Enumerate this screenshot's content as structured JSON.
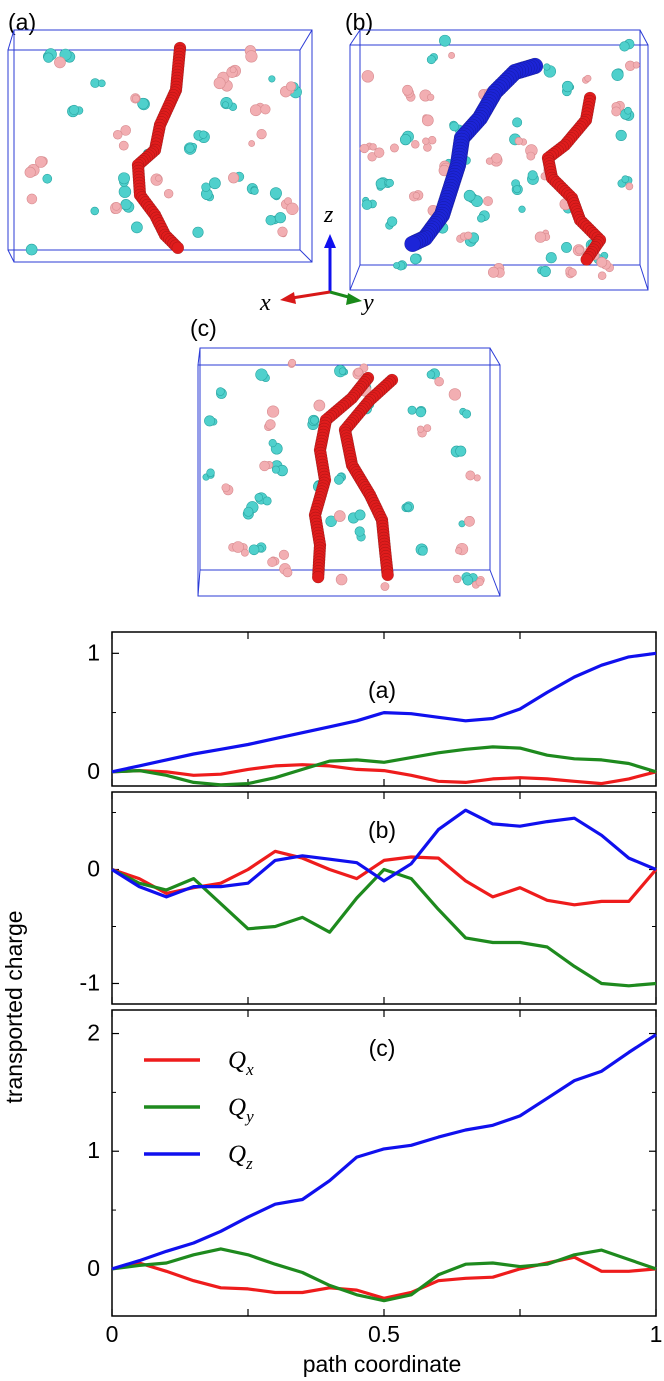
{
  "renders": [
    {
      "label": "(a)"
    },
    {
      "label": "(b)"
    },
    {
      "label": "(c)"
    }
  ],
  "axes_triad": {
    "x": "x",
    "y": "y",
    "z": "z"
  },
  "colors": {
    "box": "#2b3bd6",
    "cation": "#4fd0cc",
    "anion": "#f2aeb2",
    "path_red": "#e01c1c",
    "path_blue": "#1c24d8",
    "Qx": "#ee1c1c",
    "Qy": "#1e8a1e",
    "Qz": "#1010ee"
  },
  "chart_data": [
    {
      "type": "line",
      "panel_label": "(a)",
      "xlim": [
        0,
        1
      ],
      "ylim": [
        -0.12,
        1.18
      ],
      "yticks": [
        "0",
        "1"
      ],
      "ytick_values": [
        0,
        1
      ],
      "grid": false,
      "series": [
        {
          "name": "Qx",
          "x": [
            0,
            0.05,
            0.1,
            0.15,
            0.2,
            0.25,
            0.3,
            0.35,
            0.4,
            0.45,
            0.5,
            0.55,
            0.6,
            0.65,
            0.7,
            0.75,
            0.8,
            0.85,
            0.9,
            0.95,
            1
          ],
          "values": [
            0,
            0.01,
            0,
            -0.03,
            -0.02,
            0.02,
            0.05,
            0.06,
            0.05,
            0.02,
            0.01,
            -0.03,
            -0.08,
            -0.09,
            -0.06,
            -0.05,
            -0.06,
            -0.08,
            -0.1,
            -0.06,
            0
          ]
        },
        {
          "name": "Qy",
          "x": [
            0,
            0.05,
            0.1,
            0.15,
            0.2,
            0.25,
            0.3,
            0.35,
            0.4,
            0.45,
            0.5,
            0.55,
            0.6,
            0.65,
            0.7,
            0.75,
            0.8,
            0.85,
            0.9,
            0.95,
            1
          ],
          "values": [
            0,
            0.01,
            -0.03,
            -0.09,
            -0.11,
            -0.1,
            -0.05,
            0.02,
            0.09,
            0.1,
            0.08,
            0.12,
            0.16,
            0.19,
            0.21,
            0.2,
            0.14,
            0.11,
            0.1,
            0.07,
            0
          ]
        },
        {
          "name": "Qz",
          "x": [
            0,
            0.05,
            0.1,
            0.15,
            0.2,
            0.25,
            0.3,
            0.35,
            0.4,
            0.45,
            0.5,
            0.55,
            0.6,
            0.65,
            0.7,
            0.75,
            0.8,
            0.85,
            0.9,
            0.95,
            1
          ],
          "values": [
            0,
            0.05,
            0.1,
            0.15,
            0.19,
            0.23,
            0.28,
            0.33,
            0.38,
            0.43,
            0.5,
            0.49,
            0.46,
            0.43,
            0.45,
            0.53,
            0.67,
            0.8,
            0.9,
            0.97,
            1.0
          ]
        }
      ]
    },
    {
      "type": "line",
      "panel_label": "(b)",
      "xlim": [
        0,
        1
      ],
      "ylim": [
        -1.18,
        0.68
      ],
      "yticks": [
        "0",
        "-1"
      ],
      "ytick_values": [
        0,
        -1
      ],
      "grid": false,
      "series": [
        {
          "name": "Qx",
          "x": [
            0,
            0.05,
            0.1,
            0.15,
            0.2,
            0.25,
            0.3,
            0.35,
            0.4,
            0.45,
            0.5,
            0.55,
            0.6,
            0.65,
            0.7,
            0.75,
            0.8,
            0.85,
            0.9,
            0.95,
            1
          ],
          "values": [
            0,
            -0.08,
            -0.21,
            -0.16,
            -0.12,
            0,
            0.16,
            0.1,
            0,
            -0.08,
            0.08,
            0.11,
            0.1,
            -0.1,
            -0.24,
            -0.16,
            -0.27,
            -0.31,
            -0.28,
            -0.28,
            0
          ]
        },
        {
          "name": "Qy",
          "x": [
            0,
            0.05,
            0.1,
            0.15,
            0.2,
            0.25,
            0.3,
            0.35,
            0.4,
            0.45,
            0.5,
            0.55,
            0.6,
            0.65,
            0.7,
            0.75,
            0.8,
            0.85,
            0.9,
            0.95,
            1
          ],
          "values": [
            0,
            -0.12,
            -0.18,
            -0.08,
            -0.3,
            -0.52,
            -0.5,
            -0.42,
            -0.55,
            -0.25,
            0,
            -0.08,
            -0.35,
            -0.6,
            -0.64,
            -0.64,
            -0.68,
            -0.85,
            -1.0,
            -1.02,
            -1.0
          ]
        },
        {
          "name": "Qz",
          "x": [
            0,
            0.05,
            0.1,
            0.15,
            0.2,
            0.25,
            0.3,
            0.35,
            0.4,
            0.45,
            0.5,
            0.55,
            0.6,
            0.65,
            0.7,
            0.75,
            0.8,
            0.85,
            0.9,
            0.95,
            1
          ],
          "values": [
            0,
            -0.15,
            -0.24,
            -0.15,
            -0.15,
            -0.12,
            0.08,
            0.12,
            0.09,
            0.06,
            -0.1,
            0.05,
            0.35,
            0.52,
            0.4,
            0.38,
            0.42,
            0.45,
            0.3,
            0.1,
            0
          ]
        }
      ]
    },
    {
      "type": "line",
      "panel_label": "(c)",
      "xlim": [
        0,
        1
      ],
      "ylim": [
        -0.4,
        2.2
      ],
      "yticks": [
        "0",
        "1",
        "2"
      ],
      "ytick_values": [
        0,
        1,
        2
      ],
      "xticks": [
        "0",
        "0.5",
        "1"
      ],
      "xtick_values": [
        0,
        0.5,
        1
      ],
      "xlabel": "path coordinate",
      "ylabel": "transported charge",
      "legend_position": "top-left",
      "legend": [
        "Q_x",
        "Q_y",
        "Q_z"
      ],
      "series": [
        {
          "name": "Qx",
          "x": [
            0,
            0.05,
            0.1,
            0.15,
            0.2,
            0.25,
            0.3,
            0.35,
            0.4,
            0.45,
            0.5,
            0.55,
            0.6,
            0.65,
            0.7,
            0.75,
            0.8,
            0.85,
            0.9,
            0.95,
            1
          ],
          "values": [
            0,
            0.05,
            -0.02,
            -0.1,
            -0.16,
            -0.17,
            -0.2,
            -0.2,
            -0.16,
            -0.18,
            -0.25,
            -0.2,
            -0.1,
            -0.08,
            -0.07,
            0,
            0.05,
            0.1,
            -0.02,
            -0.02,
            0
          ]
        },
        {
          "name": "Qy",
          "x": [
            0,
            0.05,
            0.1,
            0.15,
            0.2,
            0.25,
            0.3,
            0.35,
            0.4,
            0.45,
            0.5,
            0.55,
            0.6,
            0.65,
            0.7,
            0.75,
            0.8,
            0.85,
            0.9,
            0.95,
            1
          ],
          "values": [
            0,
            0.03,
            0.05,
            0.12,
            0.17,
            0.12,
            0.04,
            -0.03,
            -0.14,
            -0.22,
            -0.27,
            -0.22,
            -0.05,
            0.04,
            0.05,
            0.02,
            0.04,
            0.12,
            0.16,
            0.08,
            0
          ]
        },
        {
          "name": "Qz",
          "x": [
            0,
            0.05,
            0.1,
            0.15,
            0.2,
            0.25,
            0.3,
            0.35,
            0.4,
            0.45,
            0.5,
            0.55,
            0.6,
            0.65,
            0.7,
            0.75,
            0.8,
            0.85,
            0.9,
            0.95,
            1
          ],
          "values": [
            0,
            0.07,
            0.15,
            0.22,
            0.32,
            0.44,
            0.55,
            0.59,
            0.75,
            0.95,
            1.02,
            1.05,
            1.12,
            1.18,
            1.22,
            1.3,
            1.45,
            1.6,
            1.68,
            1.84,
            1.99
          ]
        }
      ]
    }
  ]
}
